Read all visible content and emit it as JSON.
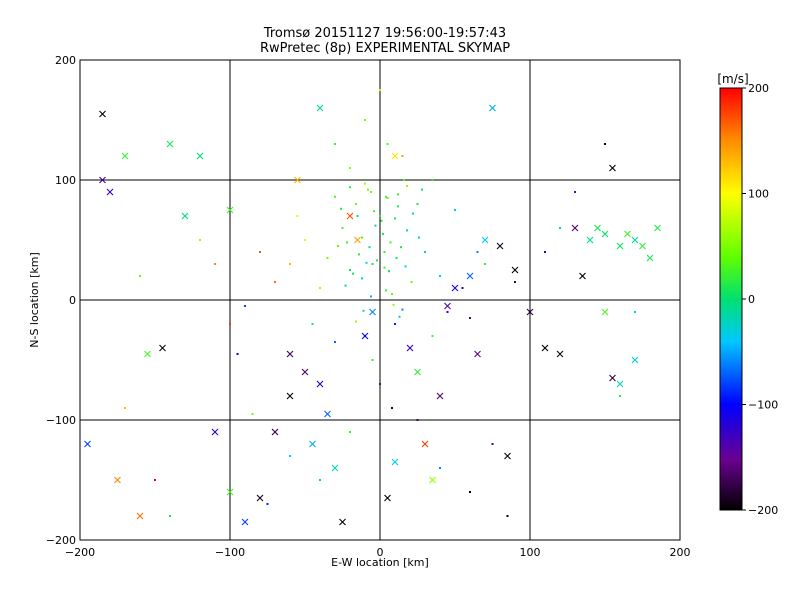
{
  "chart_data": {
    "type": "scatter",
    "title": "Tromsø 20151127 19:56:00-19:57:43",
    "subtitle": "RwPretec (8p) EXPERIMENTAL SKYMAP",
    "xlabel": "E-W location [km]",
    "ylabel": "N-S location [km]",
    "xlim": [
      -200,
      200
    ],
    "ylim": [
      -200,
      200
    ],
    "x_ticks": [
      -200,
      -100,
      0,
      100,
      200
    ],
    "y_ticks": [
      -200,
      -100,
      0,
      100,
      200
    ],
    "grid": true,
    "colorbar": {
      "label": "[m/s]",
      "range": [
        -200,
        200
      ],
      "ticks": [
        -200,
        -100,
        0,
        100,
        200
      ]
    },
    "series": [
      {
        "marker": "dot",
        "points": [
          [
            -5,
            30,
            10
          ],
          [
            3,
            40,
            25
          ],
          [
            -12,
            18,
            -15
          ],
          [
            8,
            5,
            40
          ],
          [
            15,
            -8,
            -60
          ],
          [
            -20,
            25,
            5
          ],
          [
            0,
            70,
            20
          ],
          [
            5,
            85,
            35
          ],
          [
            -8,
            92,
            50
          ],
          [
            12,
            78,
            15
          ],
          [
            18,
            95,
            60
          ],
          [
            -15,
            70,
            -5
          ],
          [
            25,
            80,
            10
          ],
          [
            -25,
            60,
            30
          ],
          [
            30,
            40,
            -20
          ],
          [
            -35,
            35,
            45
          ],
          [
            40,
            20,
            -40
          ],
          [
            -40,
            10,
            70
          ],
          [
            10,
            -20,
            -90
          ],
          [
            -10,
            -30,
            -120
          ],
          [
            20,
            -40,
            -10
          ],
          [
            -5,
            -50,
            15
          ],
          [
            0,
            -70,
            -150
          ],
          [
            8,
            -90,
            -190
          ],
          [
            -50,
            50,
            90
          ],
          [
            -60,
            30,
            130
          ],
          [
            -70,
            15,
            160
          ],
          [
            -80,
            40,
            170
          ],
          [
            -90,
            -5,
            -80
          ],
          [
            55,
            10,
            -110
          ],
          [
            60,
            -15,
            -160
          ],
          [
            65,
            40,
            -60
          ],
          [
            70,
            30,
            20
          ],
          [
            -45,
            -20,
            5
          ],
          [
            -30,
            -35,
            -70
          ],
          [
            35,
            -30,
            25
          ],
          [
            45,
            -10,
            -130
          ],
          [
            -55,
            70,
            110
          ],
          [
            50,
            75,
            -30
          ],
          [
            -20,
            110,
            55
          ],
          [
            5,
            130,
            30
          ],
          [
            -10,
            150,
            45
          ],
          [
            15,
            120,
            140
          ],
          [
            0,
            175,
            80
          ],
          [
            -30,
            130,
            25
          ],
          [
            35,
            100,
            15
          ],
          [
            90,
            15,
            -170
          ],
          [
            -95,
            -45,
            -100
          ],
          [
            100,
            -10,
            -180
          ],
          [
            -110,
            30,
            150
          ],
          [
            -120,
            50,
            120
          ],
          [
            -100,
            -20,
            180
          ],
          [
            110,
            40,
            -120
          ],
          [
            120,
            60,
            -5
          ],
          [
            -150,
            -150,
            200
          ],
          [
            -140,
            -180,
            10
          ],
          [
            -60,
            -130,
            -40
          ],
          [
            -40,
            -150,
            -10
          ],
          [
            40,
            -140,
            -60
          ],
          [
            60,
            -160,
            -200
          ],
          [
            75,
            -120,
            -140
          ],
          [
            85,
            -180,
            -195
          ],
          [
            -75,
            -170,
            -90
          ],
          [
            -20,
            -110,
            25
          ],
          [
            25,
            -100,
            -170
          ],
          [
            -85,
            -95,
            45
          ],
          [
            130,
            90,
            -150
          ],
          [
            150,
            130,
            -200
          ],
          [
            -170,
            -90,
            130
          ],
          [
            170,
            -10,
            -30
          ],
          [
            -160,
            20,
            40
          ],
          [
            160,
            -80,
            20
          ],
          [
            2,
            55,
            12
          ],
          [
            -3,
            62,
            -8
          ],
          [
            7,
            48,
            30
          ],
          [
            -7,
            44,
            -22
          ],
          [
            11,
            35,
            5
          ],
          [
            -14,
            38,
            18
          ],
          [
            17,
            28,
            -35
          ],
          [
            -18,
            22,
            8
          ],
          [
            21,
            15,
            42
          ],
          [
            -23,
            12,
            -12
          ],
          [
            4,
            8,
            22
          ],
          [
            -6,
            3,
            -48
          ],
          [
            9,
            -4,
            55
          ],
          [
            -11,
            -9,
            3
          ],
          [
            13,
            -14,
            -28
          ],
          [
            -16,
            -18,
            65
          ],
          [
            6,
            24,
            0
          ],
          [
            -2,
            33,
            12
          ],
          [
            3,
            27,
            28
          ],
          [
            -9,
            31,
            -40
          ],
          [
            14,
            44,
            9
          ],
          [
            -12,
            52,
            33
          ],
          [
            18,
            58,
            -18
          ],
          [
            -22,
            48,
            24
          ],
          [
            26,
            52,
            -6
          ],
          [
            -28,
            45,
            38
          ],
          [
            1,
            66,
            18
          ],
          [
            -4,
            74,
            26
          ],
          [
            10,
            68,
            8
          ],
          [
            -16,
            80,
            42
          ],
          [
            22,
            72,
            -12
          ],
          [
            -26,
            76,
            16
          ],
          [
            4,
            86,
            30
          ],
          [
            -6,
            90,
            46
          ],
          [
            12,
            88,
            20
          ],
          [
            -10,
            97,
            60
          ],
          [
            16,
            100,
            34
          ],
          [
            -20,
            94,
            18
          ],
          [
            28,
            92,
            4
          ],
          [
            -30,
            86,
            28
          ]
        ]
      },
      {
        "marker": "cross",
        "points": [
          [
            -185,
            155,
            -200
          ],
          [
            -175,
            -150,
            150
          ],
          [
            -160,
            -180,
            160
          ],
          [
            -140,
            130,
            10
          ],
          [
            -120,
            120,
            0
          ],
          [
            -100,
            -160,
            30
          ],
          [
            -90,
            -185,
            -80
          ],
          [
            -80,
            -165,
            -190
          ],
          [
            -70,
            -110,
            -180
          ],
          [
            -60,
            -80,
            -195
          ],
          [
            -50,
            -60,
            -160
          ],
          [
            -45,
            -120,
            -50
          ],
          [
            -40,
            -70,
            -120
          ],
          [
            -35,
            -95,
            -70
          ],
          [
            -30,
            -140,
            -20
          ],
          [
            -25,
            -185,
            -200
          ],
          [
            -20,
            70,
            170
          ],
          [
            -15,
            50,
            140
          ],
          [
            -10,
            -30,
            -100
          ],
          [
            -5,
            -10,
            -60
          ],
          [
            5,
            -165,
            -200
          ],
          [
            10,
            -135,
            -30
          ],
          [
            20,
            -40,
            -130
          ],
          [
            25,
            -60,
            20
          ],
          [
            30,
            -120,
            180
          ],
          [
            35,
            -150,
            60
          ],
          [
            40,
            -80,
            -160
          ],
          [
            45,
            -5,
            -140
          ],
          [
            50,
            10,
            -110
          ],
          [
            60,
            20,
            -70
          ],
          [
            70,
            50,
            -40
          ],
          [
            75,
            160,
            -50
          ],
          [
            80,
            45,
            -190
          ],
          [
            90,
            25,
            -200
          ],
          [
            100,
            -10,
            -180
          ],
          [
            110,
            -40,
            -200
          ],
          [
            120,
            -45,
            -190
          ],
          [
            130,
            60,
            -160
          ],
          [
            135,
            20,
            -200
          ],
          [
            150,
            -10,
            30
          ],
          [
            155,
            110,
            -200
          ],
          [
            160,
            -70,
            -20
          ],
          [
            170,
            -50,
            -30
          ],
          [
            175,
            45,
            20
          ],
          [
            180,
            35,
            10
          ],
          [
            185,
            60,
            15
          ],
          [
            160,
            45,
            5
          ],
          [
            150,
            55,
            0
          ],
          [
            140,
            50,
            -5
          ],
          [
            145,
            60,
            10
          ],
          [
            165,
            55,
            25
          ],
          [
            170,
            50,
            -10
          ],
          [
            -180,
            90,
            -130
          ],
          [
            -170,
            120,
            20
          ],
          [
            -155,
            -45,
            30
          ],
          [
            -145,
            -40,
            -195
          ],
          [
            -130,
            70,
            -5
          ],
          [
            -110,
            -110,
            -120
          ],
          [
            -195,
            -120,
            -80
          ],
          [
            -60,
            -45,
            -170
          ],
          [
            -55,
            100,
            130
          ],
          [
            10,
            120,
            110
          ],
          [
            -40,
            160,
            -5
          ],
          [
            85,
            -130,
            -195
          ],
          [
            -185,
            100,
            -140
          ],
          [
            -100,
            75,
            25
          ],
          [
            65,
            -45,
            -155
          ],
          [
            155,
            -65,
            -180
          ]
        ]
      }
    ]
  }
}
